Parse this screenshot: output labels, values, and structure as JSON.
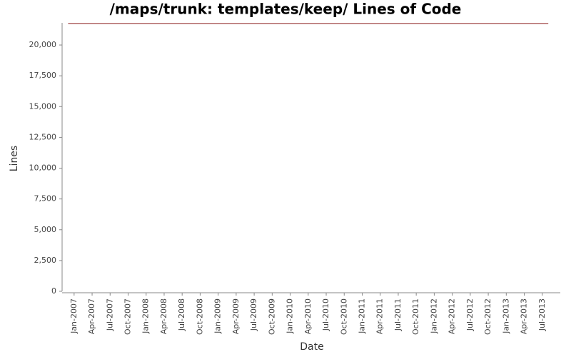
{
  "chart_data": {
    "type": "line",
    "title": "/maps/trunk: templates/keep/ Lines of Code",
    "x_label": "Date",
    "y_label": "Lines",
    "x": [
      "2006-12",
      "2013-08"
    ],
    "series": [
      {
        "name": "Lines",
        "color": "#8b1a1a",
        "values": [
          21750,
          21750
        ]
      }
    ],
    "xlim": [
      "2006-11",
      "2013-10"
    ],
    "xticks": [
      {
        "value": "2007-01",
        "label": "Jan-2007"
      },
      {
        "value": "2007-04",
        "label": "Apr-2007"
      },
      {
        "value": "2007-07",
        "label": "Jul-2007"
      },
      {
        "value": "2007-10",
        "label": "Oct-2007"
      },
      {
        "value": "2008-01",
        "label": "Jan-2008"
      },
      {
        "value": "2008-04",
        "label": "Apr-2008"
      },
      {
        "value": "2008-07",
        "label": "Jul-2008"
      },
      {
        "value": "2008-10",
        "label": "Oct-2008"
      },
      {
        "value": "2009-01",
        "label": "Jan-2009"
      },
      {
        "value": "2009-04",
        "label": "Apr-2009"
      },
      {
        "value": "2009-07",
        "label": "Jul-2009"
      },
      {
        "value": "2009-10",
        "label": "Oct-2009"
      },
      {
        "value": "2010-01",
        "label": "Jan-2010"
      },
      {
        "value": "2010-04",
        "label": "Apr-2010"
      },
      {
        "value": "2010-07",
        "label": "Jul-2010"
      },
      {
        "value": "2010-10",
        "label": "Oct-2010"
      },
      {
        "value": "2011-01",
        "label": "Jan-2011"
      },
      {
        "value": "2011-04",
        "label": "Apr-2011"
      },
      {
        "value": "2011-07",
        "label": "Jul-2011"
      },
      {
        "value": "2011-10",
        "label": "Oct-2011"
      },
      {
        "value": "2012-01",
        "label": "Jan-2012"
      },
      {
        "value": "2012-04",
        "label": "Apr-2012"
      },
      {
        "value": "2012-07",
        "label": "Jul-2012"
      },
      {
        "value": "2012-10",
        "label": "Oct-2012"
      },
      {
        "value": "2013-01",
        "label": "Jan-2013"
      },
      {
        "value": "2013-04",
        "label": "Apr-2013"
      },
      {
        "value": "2013-07",
        "label": "Jul-2013"
      }
    ],
    "ylim": [
      0,
      21800
    ],
    "yticks": [
      0,
      {
        "value": 2500,
        "label": "2,500"
      },
      {
        "value": 5000,
        "label": "5,000"
      },
      {
        "value": 7500,
        "label": "7,500"
      },
      {
        "value": 10000,
        "label": "10,000"
      },
      {
        "value": 12500,
        "label": "12,500"
      },
      {
        "value": 15000,
        "label": "15,000"
      },
      {
        "value": 17500,
        "label": "17,500"
      },
      {
        "value": 20000,
        "label": "20,000"
      }
    ],
    "grid": false
  }
}
